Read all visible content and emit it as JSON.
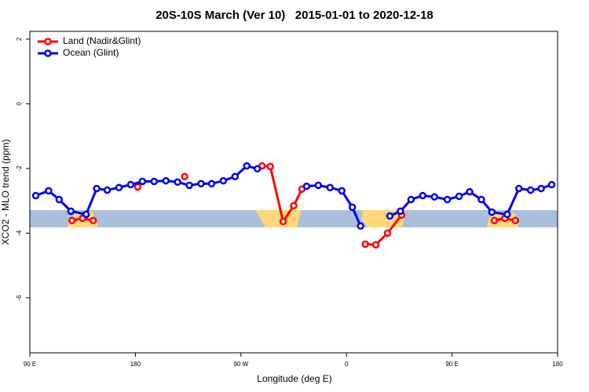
{
  "chart_data": {
    "type": "line",
    "title": "20S-10S March (Ver 10)   2015-01-01 to 2020-12-18",
    "xlabel": "Longitude (deg E)",
    "ylabel": "XCO2 - MLO trend (ppm)",
    "xlim": [
      90,
      540
    ],
    "ylim": [
      -7.7,
      2.24
    ],
    "xticks": [
      {
        "value": 90,
        "label": "90 E"
      },
      {
        "value": 180,
        "label": "180"
      },
      {
        "value": 270,
        "label": "90 W"
      },
      {
        "value": 360,
        "label": "0"
      },
      {
        "value": 450,
        "label": "90 E"
      },
      {
        "value": 540,
        "label": "180"
      }
    ],
    "yticks": [
      2,
      0,
      -2,
      -4,
      -6
    ],
    "legend": "top-left",
    "series": [
      {
        "name": "Land (Nadir&Glint)",
        "color": "#ff0000",
        "x": [
          126,
          135,
          144,
          null,
          182,
          null,
          222,
          null,
          288,
          295,
          306,
          315,
          322,
          null,
          376,
          385,
          395,
          407,
          null,
          486,
          495,
          504
        ],
        "values": [
          -3.61,
          -3.54,
          -3.61,
          null,
          -2.57,
          null,
          -2.25,
          null,
          -1.92,
          -1.94,
          -3.64,
          -3.15,
          -2.64,
          null,
          -4.34,
          -4.36,
          -4.0,
          -3.44,
          null,
          -3.61,
          -3.54,
          -3.61
        ]
      },
      {
        "name": "Ocean (Glint)",
        "color": "#0000ee",
        "x": [
          95,
          106,
          115,
          125,
          138,
          147,
          156,
          166,
          176,
          186,
          196,
          206,
          216,
          226,
          236,
          245,
          255,
          265,
          275,
          284,
          null,
          326,
          336,
          346,
          356,
          365,
          372,
          null,
          397,
          406,
          415,
          425,
          435,
          446,
          456,
          465,
          475,
          484,
          497,
          507,
          517,
          526,
          535
        ],
        "values": [
          -2.84,
          -2.69,
          -2.96,
          -3.32,
          -3.42,
          -2.62,
          -2.67,
          -2.59,
          -2.5,
          -2.4,
          -2.4,
          -2.38,
          -2.42,
          -2.52,
          -2.47,
          -2.47,
          -2.38,
          -2.25,
          -1.92,
          -2.01,
          null,
          -2.55,
          -2.52,
          -2.59,
          -2.69,
          -3.2,
          -3.78,
          null,
          -3.47,
          -3.32,
          -2.96,
          -2.84,
          -2.88,
          -2.96,
          -2.86,
          -2.72,
          -2.96,
          -3.35,
          -3.42,
          -2.62,
          -2.67,
          -2.62,
          -2.5
        ]
      }
    ]
  }
}
